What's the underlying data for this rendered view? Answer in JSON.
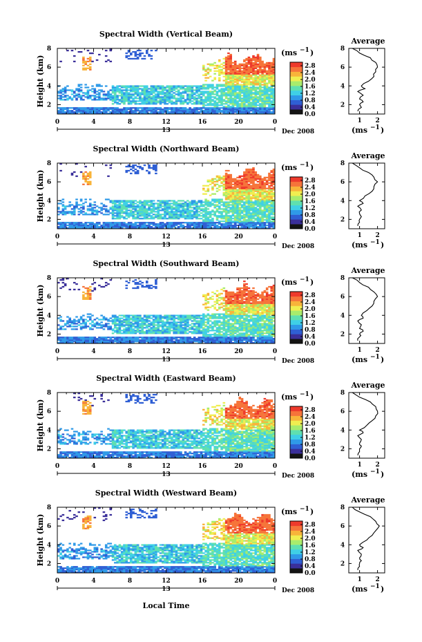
{
  "chart_data": {
    "type": "heatmap",
    "date_label": "Dec 2008",
    "xlabel": "Local Time",
    "day_label": "13",
    "x_ticks": [
      "0",
      "4",
      "8",
      "12",
      "16",
      "20",
      "0"
    ],
    "y_ticks": [
      "2",
      "4",
      "6",
      "8"
    ],
    "ylabel": "Height (km)",
    "colorbar_unit": "(ms",
    "colorbar_exp": "−1",
    "colorbar_ticks": [
      "0.0",
      "0.4",
      "0.8",
      "1.2",
      "1.6",
      "2.0",
      "2.4",
      "2.8"
    ],
    "colorbar_range": [
      0.0,
      3.0
    ],
    "x_range_hours": [
      0,
      24
    ],
    "y_range_km": [
      1,
      8
    ],
    "profile_title": "Average",
    "profile_xlabel": "(ms",
    "profile_xlabel_exp": "−1",
    "profile_x_ticks": [
      "1",
      "2"
    ],
    "profile_x_range": [
      0.4,
      2.4
    ],
    "profile_y_ticks": [
      "2",
      "4",
      "6",
      "8"
    ],
    "panels": [
      {
        "title": "Spectral Width (Vertical Beam)",
        "profile": {
          "height": [
            1.3,
            1.7,
            2.0,
            2.3,
            2.6,
            3.0,
            3.4,
            3.7,
            4.0,
            4.5,
            5.0,
            5.5,
            6.0,
            6.5,
            7.0,
            7.5,
            8.0
          ],
          "width": [
            0.9,
            1.1,
            1.0,
            1.2,
            1.0,
            1.2,
            0.9,
            1.3,
            1.1,
            1.5,
            1.8,
            1.9,
            2.0,
            1.9,
            1.6,
            1.0,
            0.6
          ]
        }
      },
      {
        "title": "Spectral Width (Northward Beam)",
        "profile": {
          "height": [
            1.3,
            1.7,
            2.0,
            2.3,
            2.6,
            3.0,
            3.4,
            3.7,
            4.0,
            4.5,
            5.0,
            5.5,
            6.0,
            6.5,
            7.0,
            7.5,
            8.0
          ],
          "width": [
            0.9,
            1.0,
            1.0,
            1.1,
            1.0,
            1.1,
            0.9,
            1.2,
            1.0,
            1.3,
            1.7,
            1.8,
            2.0,
            1.8,
            1.5,
            1.0,
            0.6
          ]
        }
      },
      {
        "title": "Spectral Width (Southward Beam)",
        "profile": {
          "height": [
            1.3,
            1.7,
            2.0,
            2.3,
            2.6,
            3.0,
            3.4,
            3.7,
            4.0,
            4.5,
            5.0,
            5.5,
            6.0,
            6.5,
            7.0,
            7.5,
            8.0
          ],
          "width": [
            0.9,
            1.0,
            1.0,
            1.2,
            1.0,
            1.1,
            0.9,
            1.2,
            1.1,
            1.4,
            1.7,
            1.8,
            2.0,
            1.8,
            1.5,
            1.0,
            0.6
          ]
        }
      },
      {
        "title": "Spectral Width (Eastward Beam)",
        "profile": {
          "height": [
            1.3,
            1.7,
            2.0,
            2.3,
            2.6,
            3.0,
            3.4,
            3.7,
            4.0,
            4.5,
            5.0,
            5.5,
            6.0,
            6.5,
            7.0,
            7.5,
            8.0
          ],
          "width": [
            0.9,
            1.0,
            1.0,
            1.1,
            1.0,
            1.1,
            0.9,
            1.2,
            1.0,
            1.4,
            1.7,
            1.9,
            2.0,
            1.9,
            1.6,
            1.0,
            0.6
          ]
        }
      },
      {
        "title": "Spectral Width (Westward Beam)",
        "profile": {
          "height": [
            1.3,
            1.7,
            2.0,
            2.3,
            2.6,
            3.0,
            3.4,
            3.7,
            4.0,
            4.5,
            5.0,
            5.5,
            6.0,
            6.5,
            7.0,
            7.5,
            8.0
          ],
          "width": [
            0.9,
            1.0,
            1.0,
            1.1,
            1.0,
            1.1,
            0.9,
            1.2,
            1.0,
            1.4,
            1.7,
            1.9,
            2.1,
            1.9,
            1.6,
            1.0,
            0.6
          ]
        }
      }
    ],
    "colors": [
      "#141414",
      "#3a2f9a",
      "#2f5fd4",
      "#2f9ae8",
      "#3fd0e6",
      "#5fe0b0",
      "#a8ec6c",
      "#f0ee50",
      "#f8b43a",
      "#f6743a",
      "#ee3a2c"
    ]
  }
}
